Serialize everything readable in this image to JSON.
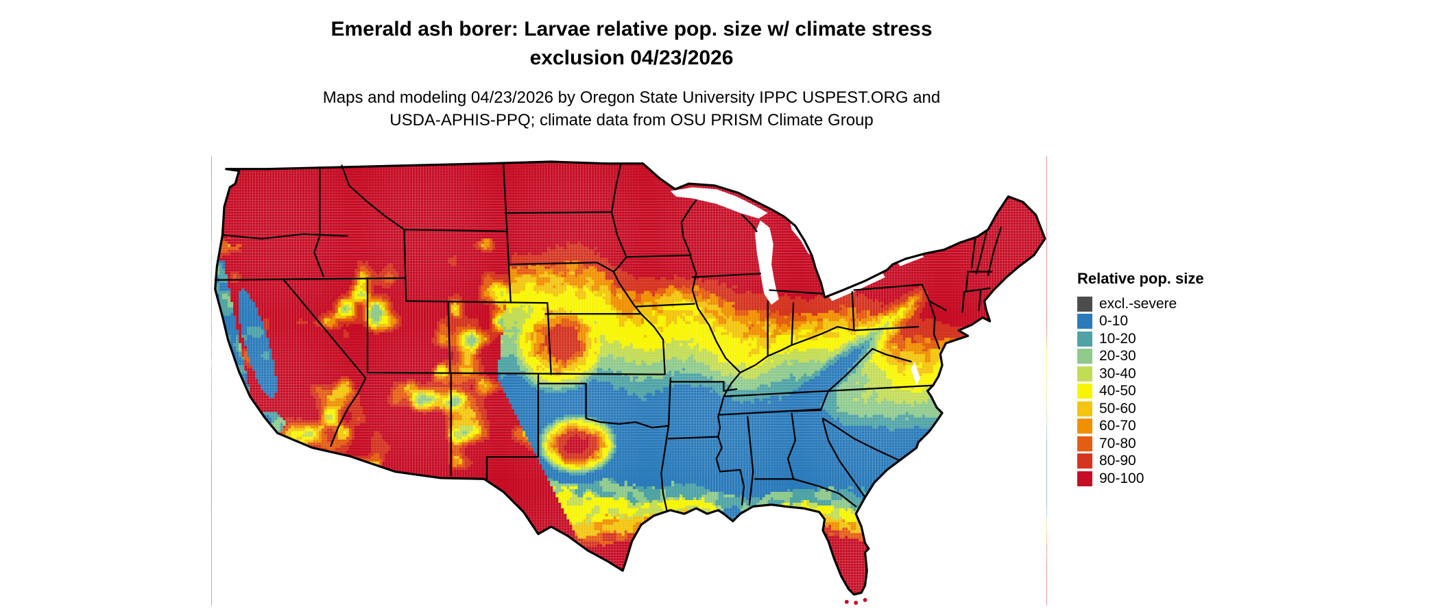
{
  "title": {
    "line1": "Emerald ash borer: Larvae relative pop. size w/ climate stress",
    "line2": "exclusion 04/23/2026"
  },
  "subtitle": {
    "line1": "Maps and modeling 04/23/2026 by Oregon State University IPPC USPEST.ORG and",
    "line2": "USDA-APHIS-PPQ; climate data from OSU PRISM Climate Group"
  },
  "map": {
    "region": "Conterminous United States"
  },
  "legend": {
    "title": "Relative pop. size",
    "items": [
      {
        "label": "excl.-severe",
        "color": "#4D4D4D"
      },
      {
        "label": "0-10",
        "color": "#2B7BBA"
      },
      {
        "label": "10-20",
        "color": "#4FA3A5"
      },
      {
        "label": "20-30",
        "color": "#8FCA8C"
      },
      {
        "label": "30-40",
        "color": "#C3DC55"
      },
      {
        "label": "40-50",
        "color": "#F8F503"
      },
      {
        "label": "50-60",
        "color": "#F3C50F"
      },
      {
        "label": "60-70",
        "color": "#F09000"
      },
      {
        "label": "70-80",
        "color": "#E45D11"
      },
      {
        "label": "80-90",
        "color": "#D43420"
      },
      {
        "label": "90-100",
        "color": "#C60D25"
      }
    ]
  }
}
